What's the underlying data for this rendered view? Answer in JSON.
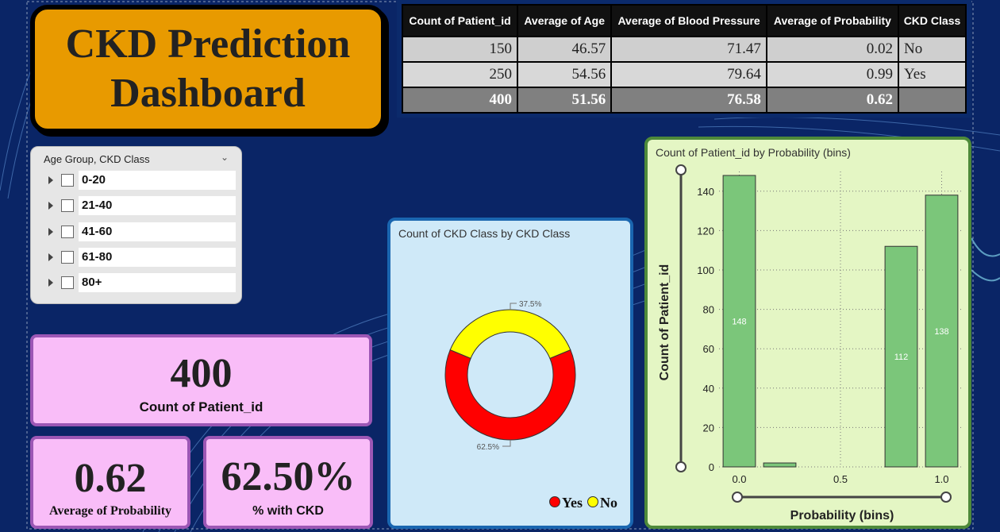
{
  "title": "CKD Prediction\nDashboard",
  "summary_table": {
    "headers": [
      "Count of Patient_id",
      "Average of Age",
      "Average of Blood Pressure",
      "Average of Probability",
      "CKD Class"
    ],
    "rows": [
      [
        "150",
        "46.57",
        "71.47",
        "0.02",
        "No"
      ],
      [
        "250",
        "54.56",
        "79.64",
        "0.99",
        "Yes"
      ]
    ],
    "total": [
      "400",
      "51.56",
      "76.58",
      "0.62",
      ""
    ]
  },
  "slicer": {
    "title": "Age Group, CKD Class",
    "items": [
      "0-20",
      "21-40",
      "41-60",
      "61-80",
      "80+"
    ]
  },
  "cards": {
    "count_value": "400",
    "count_label": "Count of Patient_id",
    "prob_value": "0.62",
    "prob_label": "Average of Probability",
    "ckd_value": "62.50%",
    "ckd_label": "% with CKD"
  },
  "chart_data": [
    {
      "type": "pie",
      "title": "Count of CKD Class by CKD Class",
      "categories": [
        "Yes",
        "No"
      ],
      "values": [
        62.5,
        37.5
      ],
      "data_labels": [
        "62.5%",
        "37.5%"
      ],
      "colors": [
        "#ff0000",
        "#ffff00"
      ],
      "legend": "bottom-right"
    },
    {
      "type": "bar",
      "title": "Count of Patient_id by Probability (bins)",
      "xlabel": "Probability (bins)",
      "ylabel": "Count of Patient_id",
      "x": [
        0.0,
        0.2,
        0.8,
        1.0
      ],
      "values": [
        148,
        2,
        112,
        138
      ],
      "data_labels": [
        "148",
        "",
        "112",
        "138"
      ],
      "xticks": [
        "0.0",
        "0.5",
        "1.0"
      ],
      "yticks": [
        "0",
        "20",
        "40",
        "60",
        "80",
        "100",
        "120",
        "140"
      ],
      "xlim": [
        -0.1,
        1.1
      ],
      "ylim": [
        0,
        150
      ],
      "bar_color": "#7bc67a",
      "grid": true
    }
  ]
}
